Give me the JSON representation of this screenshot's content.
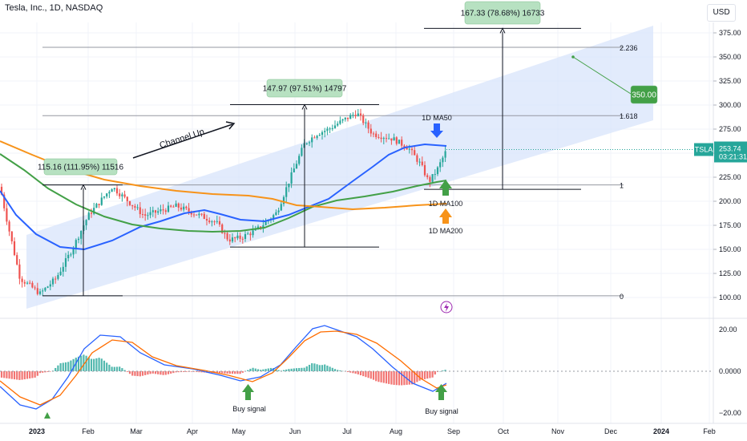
{
  "header": {
    "symbol_line": "Tesla, Inc., 1D, NASDAQ"
  },
  "currency": "USD",
  "colors": {
    "up_candle": "#26a69a",
    "down_candle": "#ef5350",
    "ma50": "#2962ff",
    "ma100": "#43a047",
    "ma200": "#f7931a",
    "channel_fill": "#d6e2fb",
    "macd": "#2962ff",
    "signal": "#ff6d00",
    "price_tag": "#26a69a",
    "green_label": "#b7e1c1"
  },
  "price_axis": {
    "ticks": [
      "375.00",
      "350.00",
      "325.00",
      "300.00",
      "275.00",
      "250.00",
      "225.00",
      "200.00",
      "175.00",
      "150.00",
      "125.00",
      "100.00"
    ],
    "current_symbol": "TSLA",
    "current_price": "253.74",
    "countdown": "03:21:31"
  },
  "macd_axis": {
    "ticks": [
      "20.00",
      "0.0000",
      "−20.00"
    ]
  },
  "time_axis": [
    "2023",
    "Feb",
    "Mar",
    "Apr",
    "May",
    "Jun",
    "Jul",
    "Aug",
    "Sep",
    "Oct",
    "Nov",
    "Dec",
    "2024",
    "Feb"
  ],
  "annotations": {
    "channel": "Channel Up",
    "measure1": "115.16 (111.95%) 11516",
    "measure2": "147.97 (97.51%) 14797",
    "measure3": "167.33 (78.68%) 16733",
    "target": "350.00",
    "fib": [
      "2.236",
      "1.618",
      "1",
      "0"
    ],
    "ma50": "1D MA50",
    "ma100": "1D MA100",
    "ma200": "1D MA200",
    "buy1": "Buy signal",
    "buy2": "Buy signal"
  },
  "chart_data": {
    "type": "line",
    "title": "Tesla, Inc., 1D, NASDAQ",
    "x": [
      "Jan 2023",
      "Feb",
      "Mar",
      "Apr",
      "May",
      "Jun",
      "Jul",
      "Aug",
      "Sep"
    ],
    "series": [
      {
        "name": "1D MA50",
        "values": [
          160,
          110,
          125,
          180,
          190,
          175,
          230,
          270,
          252
        ]
      },
      {
        "name": "1D MA100",
        "values": [
          225,
          170,
          180,
          185,
          170,
          178,
          215,
          240,
          225
        ]
      },
      {
        "name": "1D MA200",
        "values": [
          270,
          250,
          215,
          205,
          205,
          205,
          200,
          197,
          198
        ]
      }
    ],
    "fib_levels": [
      {
        "label": "0",
        "price": 101.8
      },
      {
        "label": "1",
        "price": 217
      },
      {
        "label": "1.618",
        "price": 289
      },
      {
        "label": "2.236",
        "price": 360
      }
    ],
    "measurements": [
      {
        "label": "115.16 (111.95%) 11516",
        "from": 101.8,
        "to": 217
      },
      {
        "label": "147.97 (97.51%) 14797",
        "from": 152.4,
        "to": 300.4
      },
      {
        "label": "167.33 (78.68%) 16733",
        "from": 212.4,
        "to": 379.7
      }
    ],
    "target": 350.0,
    "last_price": 253.74,
    "ylim": [
      85,
      390
    ]
  }
}
